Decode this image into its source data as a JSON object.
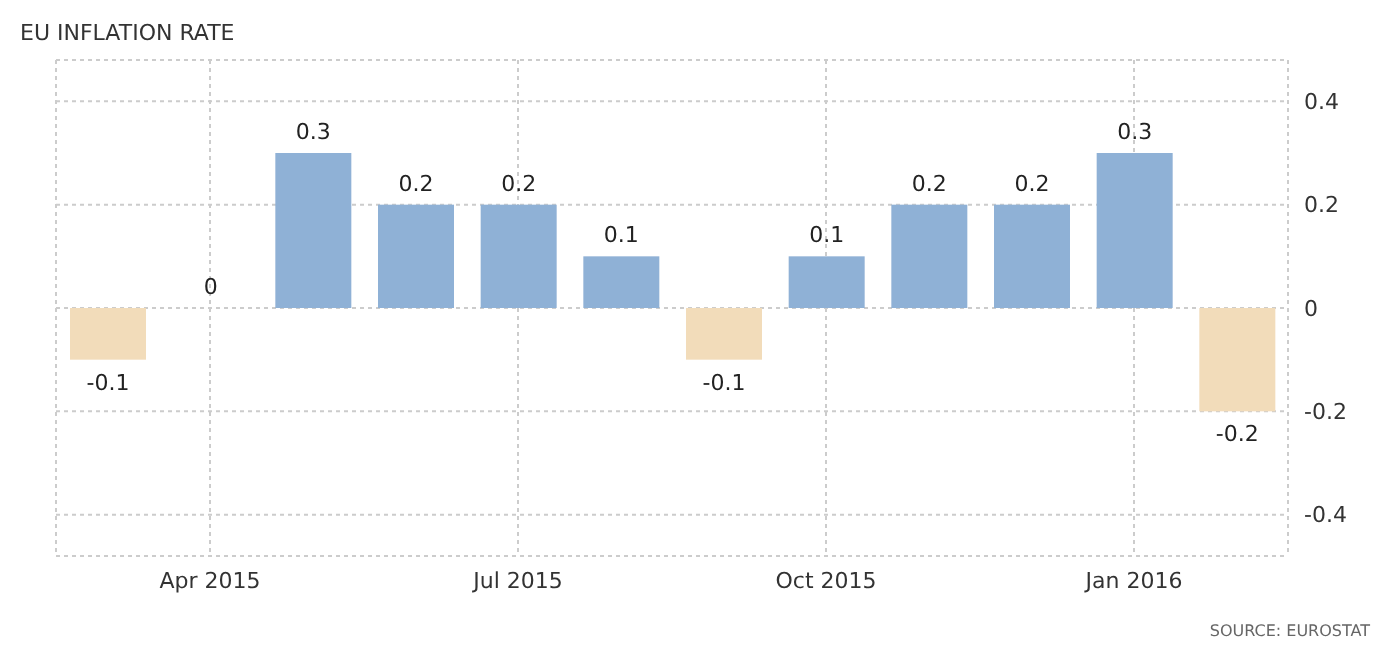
{
  "chart_data": {
    "type": "bar",
    "title": "EU INFLATION RATE",
    "categories": [
      null,
      "Apr 2015",
      null,
      null,
      "Jul 2015",
      null,
      null,
      "Oct 2015",
      null,
      null,
      "Jan 2016",
      null
    ],
    "values": [
      -0.1,
      0,
      0.3,
      0.2,
      0.2,
      0.1,
      -0.1,
      0.1,
      0.2,
      0.2,
      0.3,
      -0.2
    ],
    "colors": [
      "#f2dcba",
      "#8fb1d6",
      "#8fb1d6",
      "#8fb1d6",
      "#8fb1d6",
      "#8fb1d6",
      "#f2dcba",
      "#8fb1d6",
      "#8fb1d6",
      "#8fb1d6",
      "#8fb1d6",
      "#f2dcba"
    ],
    "ylim": [
      -0.48,
      0.48
    ],
    "yticks": [
      -0.4,
      -0.2,
      0,
      0.2,
      0.4
    ],
    "grid": true,
    "data_labels": true,
    "annotations": [
      "SOURCE: EUROSTAT"
    ]
  }
}
